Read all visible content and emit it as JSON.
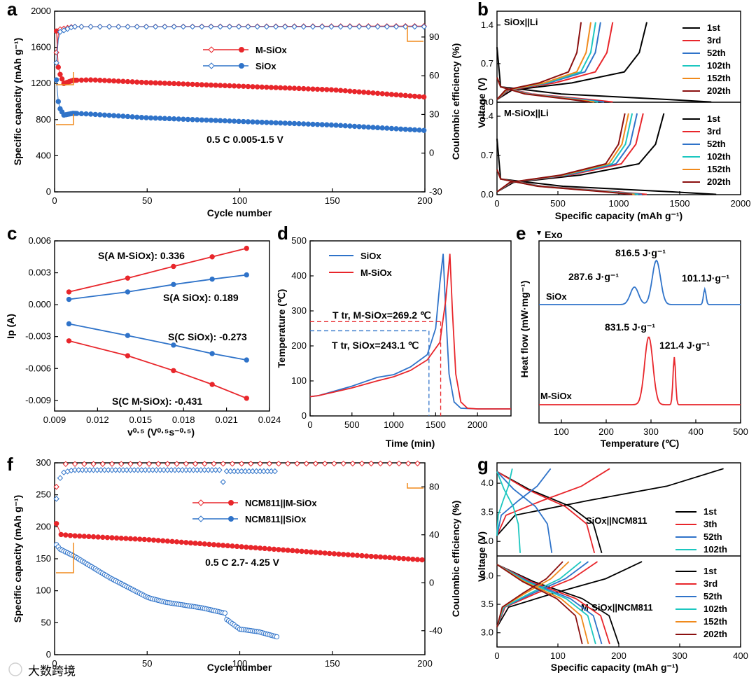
{
  "chart_data": [
    {
      "panel": "a",
      "type": "scatter",
      "xlabel": "Cycle number",
      "ylabel": "Specific capacity (mAh g⁻¹)",
      "y2label": "Coulombic efficiency (%)",
      "xlim": [
        0,
        200
      ],
      "ylim": [
        0,
        2000
      ],
      "y2lim": [
        -30,
        110
      ],
      "xticks": [
        "0",
        "50",
        "100",
        "150",
        "200"
      ],
      "yticks": [
        "0",
        "400",
        "800",
        "1200",
        "1600",
        "2000"
      ],
      "y2ticks": [
        "-30",
        "0",
        "30",
        "60",
        "90"
      ],
      "annotation": "0.5 C  0.005-1.5 V",
      "legend_placement": "top-center",
      "series": [
        {
          "name": "M-SiOx",
          "color": "#e8262b",
          "capacity": [
            [
              1,
              1780
            ],
            [
              2,
              1380
            ],
            [
              3,
              1300
            ],
            [
              5,
              1200
            ],
            [
              10,
              1235
            ],
            [
              20,
              1240
            ],
            [
              50,
              1210
            ],
            [
              100,
              1170
            ],
            [
              150,
              1130
            ],
            [
              200,
              1050
            ]
          ],
          "efficiency": [
            [
              1,
              78
            ],
            [
              2,
              92
            ],
            [
              3,
              96
            ],
            [
              10,
              98
            ],
            [
              200,
              98.5
            ]
          ]
        },
        {
          "name": "SiOx",
          "color": "#2f73c9",
          "capacity": [
            [
              1,
              1240
            ],
            [
              2,
              1000
            ],
            [
              3,
              920
            ],
            [
              5,
              850
            ],
            [
              10,
              870
            ],
            [
              20,
              860
            ],
            [
              50,
              820
            ],
            [
              100,
              780
            ],
            [
              150,
              740
            ],
            [
              200,
              680
            ]
          ],
          "efficiency": [
            [
              1,
              70
            ],
            [
              2,
              88
            ],
            [
              3,
              94
            ],
            [
              10,
              98
            ],
            [
              200,
              98
            ]
          ]
        }
      ]
    },
    {
      "panel": "b",
      "type": "line",
      "xlabel": "Specific capacity (mAh g⁻¹)",
      "ylabel": "Voltage (V)",
      "xlim": [
        0,
        2000
      ],
      "xticks": [
        "0",
        "500",
        "1000",
        "1500",
        "2000"
      ],
      "yticks": [
        "0.0",
        "0.7",
        "1.4"
      ],
      "subplots": [
        {
          "title": "SiOx||Li",
          "legend": [
            "1st",
            "3rd",
            "52th",
            "102th",
            "152th",
            "202th"
          ],
          "charge_capacity": [
            1230,
            950,
            850,
            810,
            770,
            690
          ]
        },
        {
          "title": "M-SiOx||Li",
          "legend": [
            "1st",
            "3rd",
            "52th",
            "102th",
            "152th",
            "202th"
          ],
          "charge_capacity": [
            1370,
            1200,
            1150,
            1110,
            1080,
            1050
          ]
        }
      ],
      "series_colors": [
        "#000000",
        "#e8262b",
        "#2f73c9",
        "#1cc7c0",
        "#f08a1c",
        "#8b1010"
      ]
    },
    {
      "panel": "c",
      "type": "scatter",
      "xlabel": "v⁰·⁵ (V⁰·⁵s⁻⁰·⁵)",
      "ylabel": "Ip (A)",
      "xlim": [
        0.009,
        0.024
      ],
      "ylim": [
        -0.01,
        0.006
      ],
      "xticks": [
        "0.009",
        "0.012",
        "0.015",
        "0.018",
        "0.021",
        "0.024"
      ],
      "yticks": [
        "-0.009",
        "-0.006",
        "-0.003",
        "0.000",
        "0.003",
        "0.006"
      ],
      "x": [
        0.01,
        0.0141,
        0.0173,
        0.02,
        0.0224
      ],
      "series": [
        {
          "name": "S(A M-SiOx): 0.336",
          "color": "#e8262b",
          "values": [
            0.0012,
            0.0025,
            0.0036,
            0.0045,
            0.0053
          ]
        },
        {
          "name": "S(A SiOx): 0.189",
          "color": "#2f73c9",
          "values": [
            0.0005,
            0.0012,
            0.0019,
            0.0024,
            0.0028
          ]
        },
        {
          "name": "S(C SiOx): -0.273",
          "color": "#2f73c9",
          "values": [
            -0.0018,
            -0.0029,
            -0.0038,
            -0.0046,
            -0.0052
          ]
        },
        {
          "name": "S(C M-SiOx): -0.431",
          "color": "#e8262b",
          "values": [
            -0.0034,
            -0.0048,
            -0.0062,
            -0.0075,
            -0.0088
          ]
        }
      ]
    },
    {
      "panel": "d",
      "type": "line",
      "xlabel": "Time (min)",
      "ylabel": "Temperature (℃)",
      "xlim": [
        0,
        2400
      ],
      "ylim": [
        0,
        500
      ],
      "xticks": [
        "0",
        "500",
        "1000",
        "1500",
        "2000"
      ],
      "yticks": [
        "0",
        "100",
        "200",
        "300",
        "400",
        "500"
      ],
      "series": [
        {
          "name": "SiOx",
          "color": "#2f73c9",
          "points": [
            [
              0,
              55
            ],
            [
              100,
              58
            ],
            [
              500,
              85
            ],
            [
              800,
              110
            ],
            [
              1000,
              118
            ],
            [
              1200,
              140
            ],
            [
              1400,
              175
            ],
            [
              1500,
              250
            ],
            [
              1550,
              380
            ],
            [
              1590,
              463
            ],
            [
              1620,
              300
            ],
            [
              1660,
              120
            ],
            [
              1720,
              40
            ],
            [
              1800,
              22
            ],
            [
              2000,
              20
            ],
            [
              2400,
              20
            ]
          ]
        },
        {
          "name": "M-SiOx",
          "color": "#e8262b",
          "points": [
            [
              0,
              55
            ],
            [
              100,
              58
            ],
            [
              500,
              80
            ],
            [
              800,
              100
            ],
            [
              1000,
              112
            ],
            [
              1200,
              130
            ],
            [
              1400,
              160
            ],
            [
              1550,
              210
            ],
            [
              1620,
              330
            ],
            [
              1670,
              463
            ],
            [
              1700,
              300
            ],
            [
              1740,
              120
            ],
            [
              1800,
              40
            ],
            [
              1880,
              22
            ],
            [
              2000,
              20
            ],
            [
              2400,
              20
            ]
          ]
        }
      ],
      "annotations": [
        {
          "label": "T tr, M-SiOx=269.2 ℃",
          "value": 269.2,
          "time": 1560,
          "color": "#e8262b"
        },
        {
          "label": "T tr, SiOx=243.1 ℃",
          "value": 243.1,
          "time": 1420,
          "color": "#2f73c9"
        }
      ]
    },
    {
      "panel": "e",
      "type": "line",
      "xlabel": "Temperature (℃)",
      "ylabel": "Heat flow (mW·mg⁻¹)",
      "xlim": [
        50,
        500
      ],
      "xticks": [
        "100",
        "200",
        "300",
        "400",
        "500"
      ],
      "exo_label": "Exo",
      "series": [
        {
          "name": "SiOx",
          "color": "#2f73c9",
          "peaks": [
            [
              263,
              "287.6 J·g⁻¹"
            ],
            [
              312,
              "816.5 J·g⁻¹"
            ],
            [
              420,
              "101.1J·g⁻¹"
            ]
          ]
        },
        {
          "name": "M-SiOx",
          "color": "#e8262b",
          "peaks": [
            [
              295,
              "831.5 J·g⁻¹"
            ],
            [
              352,
              "121.4 J·g⁻¹"
            ]
          ]
        }
      ]
    },
    {
      "panel": "f",
      "type": "scatter",
      "xlabel": "Cycle number",
      "ylabel": "Specific capacity (mAh g⁻¹)",
      "y2label": "Coulombic efficiency (%)",
      "xlim": [
        0,
        200
      ],
      "ylim": [
        0,
        300
      ],
      "y2lim": [
        -60,
        100
      ],
      "xticks": [
        "0",
        "50",
        "100",
        "150",
        "200"
      ],
      "yticks": [
        "0",
        "50",
        "100",
        "150",
        "200",
        "250",
        "300"
      ],
      "y2ticks": [
        "-40",
        "0",
        "40",
        "80"
      ],
      "annotation": "0.5 C  2.7- 4.25 V",
      "legend_placement": "top-center",
      "series": [
        {
          "name": "NCM811||M-SiOx",
          "color": "#e8262b",
          "capacity": [
            [
              1,
              205
            ],
            [
              2,
              200
            ],
            [
              3,
              188
            ],
            [
              10,
              186
            ],
            [
              50,
              180
            ],
            [
              100,
              169
            ],
            [
              150,
              158
            ],
            [
              200,
              148
            ]
          ],
          "efficiency": [
            [
              1,
              80
            ],
            [
              2,
              94
            ],
            [
              3,
              99
            ],
            [
              200,
              99.5
            ]
          ]
        },
        {
          "name": "NCM811||SiOx",
          "color": "#2f73c9",
          "capacity": [
            [
              1,
              172
            ],
            [
              3,
              165
            ],
            [
              10,
              155
            ],
            [
              30,
              120
            ],
            [
              50,
              90
            ],
            [
              52,
              88
            ],
            [
              60,
              82
            ],
            [
              80,
              73
            ],
            [
              92,
              65
            ],
            [
              93,
              55
            ],
            [
              100,
              40
            ],
            [
              110,
              36
            ],
            [
              120,
              28
            ]
          ],
          "efficiency": [
            [
              1,
              70
            ],
            [
              2,
              85
            ],
            [
              5,
              92
            ],
            [
              10,
              94
            ],
            [
              90,
              94
            ],
            [
              91,
              84
            ],
            [
              93,
              93
            ],
            [
              120,
              93
            ]
          ]
        }
      ]
    },
    {
      "panel": "g",
      "type": "line",
      "xlabel": "Specific capacity (mAh g⁻¹)",
      "ylabel": "Voltage (V)",
      "xlim": [
        0,
        400
      ],
      "xticks": [
        "0",
        "100",
        "200",
        "300",
        "400"
      ],
      "yticks": [
        "3.0",
        "3.5",
        "4.0"
      ],
      "subplots": [
        {
          "title": "SiOx||NCM811",
          "legend": [
            "1st",
            "3th",
            "52th",
            "102th"
          ],
          "charge_capacity": [
            372,
            185,
            88,
            25
          ],
          "discharge_capacity": [
            172,
            160,
            90,
            38
          ]
        },
        {
          "title": "M-SiOx||NCM811",
          "legend": [
            "1st",
            "3rd",
            "52th",
            "102th",
            "152th",
            "202th"
          ],
          "charge_capacity": [
            238,
            165,
            150,
            138,
            118,
            108
          ],
          "discharge_capacity": [
            200,
            185,
            172,
            162,
            150,
            140
          ]
        }
      ],
      "series_colors": [
        "#000000",
        "#e8262b",
        "#2f73c9",
        "#1cc7c0",
        "#f08a1c",
        "#8b1010"
      ]
    }
  ],
  "watermark": "大数跨境"
}
